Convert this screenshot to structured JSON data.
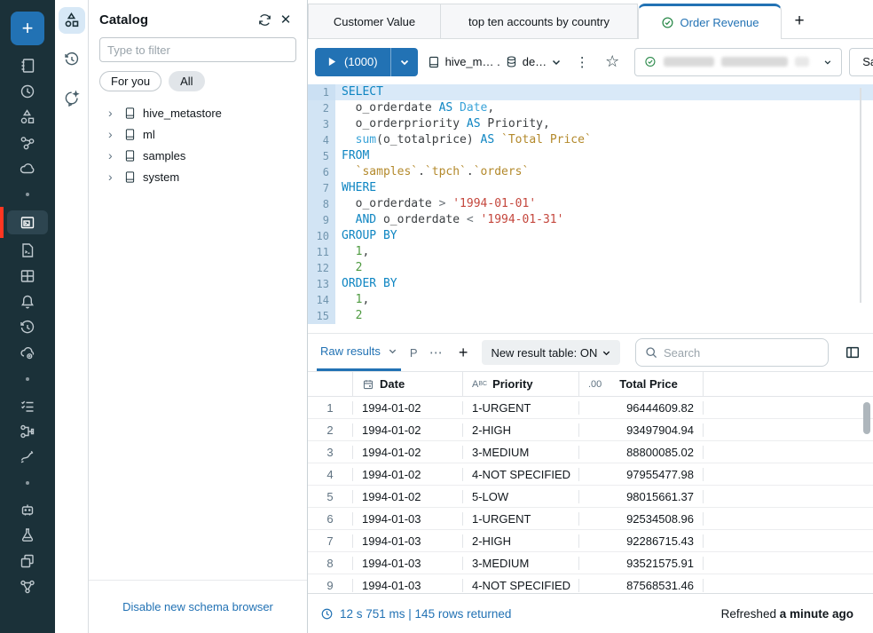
{
  "colors": {
    "sidebar_bg": "#1B3139",
    "accent_red": "#FF3621",
    "brand_blue": "#2272B4",
    "green_check": "#2C8A4B",
    "gutter_bg": "#D2E4F4",
    "active_line": "#D9E9F8"
  },
  "icons": {
    "plus": "+",
    "kebab": "⋮",
    "star": "☆",
    "close": "✕",
    "ellipsis": "⋯",
    "chevron_right": "›",
    "string_type": "ABC",
    "decimal_type": ".00"
  },
  "sidebar": {
    "items": [
      "new",
      "workspace",
      "recents",
      "catalog",
      "workflows",
      "compute",
      "sql-editor",
      "queries",
      "dashboards",
      "alerts",
      "query-history",
      "sql-warehouses",
      "job-runs",
      "data-ingestion",
      "pipelines",
      "playground",
      "experiments",
      "models",
      "features"
    ],
    "active_item": "sql-editor"
  },
  "rail": {
    "items": [
      "catalog",
      "history",
      "assistant"
    ],
    "active_item": "catalog"
  },
  "catalog": {
    "title": "Catalog",
    "filter_placeholder": "Type to filter",
    "pills": {
      "for_you": "For you",
      "all": "All"
    },
    "tree": [
      "hive_metastore",
      "ml",
      "samples",
      "system"
    ],
    "footer_link": "Disable new schema browser"
  },
  "tabs": {
    "items": [
      {
        "label": "Customer Value",
        "active": false
      },
      {
        "label": "top ten accounts by country",
        "active": false
      },
      {
        "label": "Order Revenue",
        "active": true
      }
    ]
  },
  "toolbar": {
    "run_label": "(1000)",
    "context_catalog": "hive_m… .",
    "context_schema": "de…",
    "save_label": "Save"
  },
  "editor": {
    "language": "sql",
    "lines": [
      [
        [
          "kw",
          "SELECT"
        ]
      ],
      [
        [
          "id",
          "  o_orderdate "
        ],
        [
          "kw",
          "AS"
        ],
        [
          "ty",
          " Date"
        ],
        [
          "pn",
          ","
        ]
      ],
      [
        [
          "id",
          "  o_orderpriority "
        ],
        [
          "kw",
          "AS"
        ],
        [
          "id",
          " Priority"
        ],
        [
          "pn",
          ","
        ]
      ],
      [
        [
          "fn",
          "  sum"
        ],
        [
          "pn",
          "("
        ],
        [
          "id",
          "o_totalprice"
        ],
        [
          "pn",
          ")"
        ],
        [
          "kw",
          " AS"
        ],
        [
          "bt",
          " `Total Price`"
        ]
      ],
      [
        [
          "kw",
          "FROM"
        ]
      ],
      [
        [
          "bt",
          "  `samples`"
        ],
        [
          "pn",
          "."
        ],
        [
          "bt",
          "`tpch`"
        ],
        [
          "pn",
          "."
        ],
        [
          "bt",
          "`orders`"
        ]
      ],
      [
        [
          "kw",
          "WHERE"
        ]
      ],
      [
        [
          "id",
          "  o_orderdate "
        ],
        [
          "op",
          ">"
        ],
        [
          "st",
          " '1994-01-01'"
        ]
      ],
      [
        [
          "kw",
          "  AND"
        ],
        [
          "id",
          " o_orderdate "
        ],
        [
          "op",
          "<"
        ],
        [
          "st",
          " '1994-01-31'"
        ]
      ],
      [
        [
          "kw",
          "GROUP BY"
        ]
      ],
      [
        [
          "nu",
          "  1"
        ],
        [
          "pn",
          ","
        ]
      ],
      [
        [
          "nu",
          "  2"
        ]
      ],
      [
        [
          "kw",
          "ORDER BY"
        ]
      ],
      [
        [
          "nu",
          "  1"
        ],
        [
          "pn",
          ","
        ]
      ],
      [
        [
          "nu",
          "  2"
        ]
      ]
    ]
  },
  "results": {
    "active_tab": "Raw results",
    "hidden_tab": "P",
    "new_result_table_label": "New result table: ON",
    "search_placeholder": "Search",
    "table": {
      "columns": [
        "",
        "Date",
        "Priority",
        "Total Price"
      ],
      "rows": [
        [
          "1",
          "1994-01-02",
          "1-URGENT",
          "96444609.82"
        ],
        [
          "2",
          "1994-01-02",
          "2-HIGH",
          "93497904.94"
        ],
        [
          "3",
          "1994-01-02",
          "3-MEDIUM",
          "88800085.02"
        ],
        [
          "4",
          "1994-01-02",
          "4-NOT SPECIFIED",
          "97955477.98"
        ],
        [
          "5",
          "1994-01-02",
          "5-LOW",
          "98015661.37"
        ],
        [
          "6",
          "1994-01-03",
          "1-URGENT",
          "92534508.96"
        ],
        [
          "7",
          "1994-01-03",
          "2-HIGH",
          "92286715.43"
        ],
        [
          "8",
          "1994-01-03",
          "3-MEDIUM",
          "93521575.91"
        ],
        [
          "9",
          "1994-01-03",
          "4-NOT SPECIFIED",
          "87568531.46"
        ]
      ]
    }
  },
  "statusbar": {
    "timing": "12 s 751 ms | 145 rows returned",
    "refreshed_prefix": "Refreshed",
    "refreshed_time": "a minute ago"
  }
}
